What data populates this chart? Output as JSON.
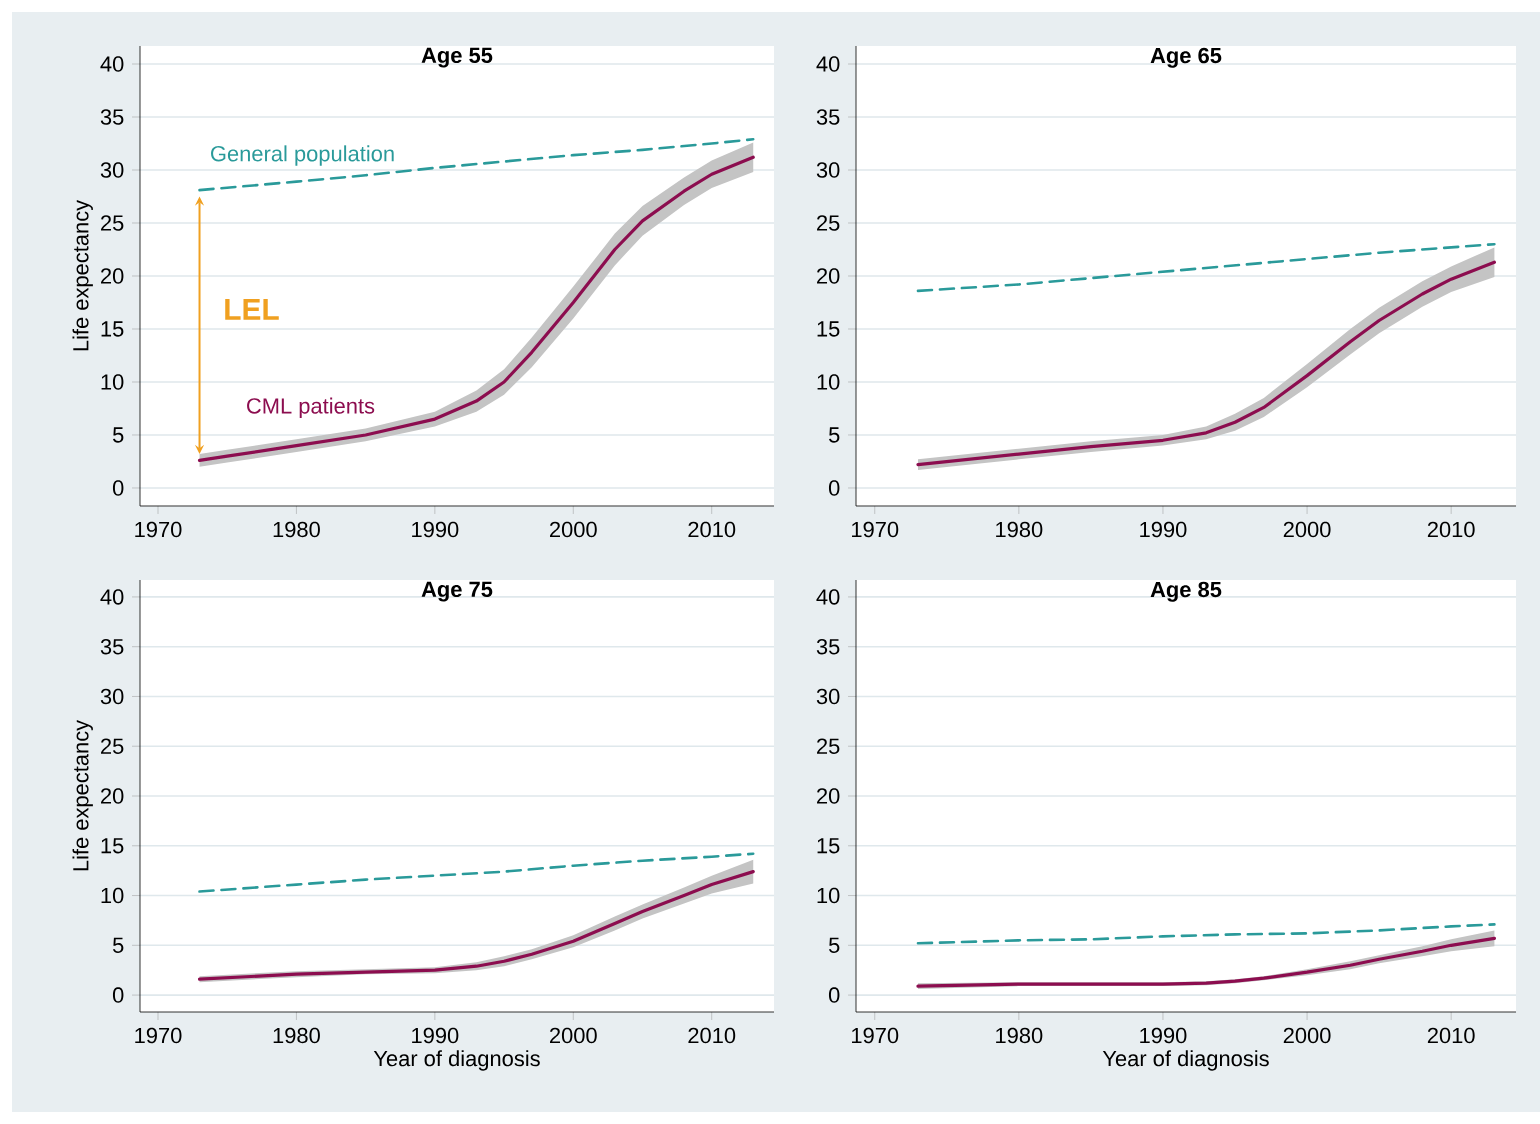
{
  "chart_data": [
    {
      "type": "line",
      "title": "Age 55",
      "ylabel": "Life expectancy",
      "xlim": [
        1968.7,
        2014.5
      ],
      "ylim": [
        -1.7,
        41.7
      ],
      "xticks": [
        1970,
        1980,
        1990,
        2000,
        2010
      ],
      "yticks": [
        0,
        5,
        10,
        15,
        20,
        25,
        30,
        35,
        40
      ],
      "grid": "y",
      "marker": "none",
      "annotations": [
        "LEL"
      ],
      "series": [
        {
          "name": "General population",
          "color": "#2a9a9a",
          "line_style": "dashed",
          "x": [
            1973,
            1980,
            1985,
            1990,
            1995,
            2000,
            2005,
            2010,
            2013
          ],
          "values": [
            28.1,
            28.9,
            29.5,
            30.2,
            30.8,
            31.4,
            31.9,
            32.5,
            32.9
          ]
        },
        {
          "name": "CML patients",
          "color": "#8c0d4f",
          "line_style": "solid",
          "x": [
            1973,
            1975,
            1980,
            1985,
            1990,
            1993,
            1995,
            1997,
            2000,
            2003,
            2005,
            2008,
            2010,
            2013
          ],
          "values": [
            2.6,
            3.0,
            4.0,
            5.0,
            6.5,
            8.2,
            10.0,
            12.8,
            17.5,
            22.5,
            25.2,
            28.0,
            29.6,
            31.2
          ],
          "lower": [
            2.0,
            2.4,
            3.4,
            4.4,
            5.8,
            7.2,
            8.8,
            11.4,
            16.0,
            21.0,
            23.8,
            26.7,
            28.3,
            29.8
          ],
          "upper": [
            3.2,
            3.6,
            4.6,
            5.6,
            7.2,
            9.2,
            11.2,
            14.2,
            19.0,
            24.0,
            26.6,
            29.3,
            30.9,
            32.6
          ]
        }
      ]
    },
    {
      "type": "line",
      "title": "Age 65",
      "xlim": [
        1968.7,
        2014.5
      ],
      "ylim": [
        -1.7,
        41.7
      ],
      "xticks": [
        1970,
        1980,
        1990,
        2000,
        2010
      ],
      "yticks": [
        0,
        5,
        10,
        15,
        20,
        25,
        30,
        35,
        40
      ],
      "grid": "y",
      "marker": "none",
      "series": [
        {
          "color": "#2a9a9a",
          "line_style": "dashed",
          "x": [
            1973,
            1980,
            1985,
            1990,
            1995,
            2000,
            2005,
            2010,
            2013
          ],
          "values": [
            18.6,
            19.2,
            19.8,
            20.4,
            21.0,
            21.6,
            22.2,
            22.7,
            23.0
          ]
        },
        {
          "color": "#8c0d4f",
          "line_style": "solid",
          "x": [
            1973,
            1980,
            1985,
            1990,
            1993,
            1995,
            1997,
            2000,
            2003,
            2005,
            2008,
            2010,
            2013
          ],
          "values": [
            2.2,
            3.2,
            3.9,
            4.5,
            5.2,
            6.2,
            7.6,
            10.6,
            13.8,
            15.8,
            18.3,
            19.7,
            21.3
          ],
          "lower": [
            1.7,
            2.7,
            3.4,
            4.0,
            4.6,
            5.4,
            6.7,
            9.5,
            12.6,
            14.6,
            17.1,
            18.5,
            19.9
          ],
          "upper": [
            2.7,
            3.7,
            4.4,
            5.0,
            5.8,
            7.0,
            8.5,
            11.7,
            15.0,
            17.0,
            19.5,
            20.9,
            22.7
          ]
        }
      ]
    },
    {
      "type": "line",
      "title": "Age 75",
      "xlabel": "Year of diagnosis",
      "ylabel": "Life expectancy",
      "xlim": [
        1968.7,
        2014.5
      ],
      "ylim": [
        -1.7,
        41.7
      ],
      "xticks": [
        1970,
        1980,
        1990,
        2000,
        2010
      ],
      "yticks": [
        0,
        5,
        10,
        15,
        20,
        25,
        30,
        35,
        40
      ],
      "grid": "y",
      "marker": "none",
      "series": [
        {
          "color": "#2a9a9a",
          "line_style": "dashed",
          "x": [
            1973,
            1980,
            1985,
            1990,
            1995,
            2000,
            2005,
            2010,
            2013
          ],
          "values": [
            10.4,
            11.1,
            11.6,
            12.0,
            12.4,
            13.0,
            13.5,
            13.9,
            14.2
          ]
        },
        {
          "color": "#8c0d4f",
          "line_style": "solid",
          "x": [
            1973,
            1980,
            1985,
            1990,
            1993,
            1995,
            1997,
            2000,
            2003,
            2005,
            2008,
            2010,
            2013
          ],
          "values": [
            1.6,
            2.1,
            2.3,
            2.5,
            2.9,
            3.4,
            4.1,
            5.4,
            7.2,
            8.4,
            10.0,
            11.1,
            12.4
          ],
          "lower": [
            1.3,
            1.8,
            2.1,
            2.2,
            2.5,
            2.9,
            3.6,
            4.8,
            6.5,
            7.7,
            9.2,
            10.2,
            11.2
          ],
          "upper": [
            1.9,
            2.4,
            2.6,
            2.8,
            3.3,
            3.9,
            4.6,
            6.0,
            7.9,
            9.1,
            10.8,
            12.0,
            13.6
          ]
        }
      ]
    },
    {
      "type": "line",
      "title": "Age 85",
      "xlabel": "Year of diagnosis",
      "xlim": [
        1968.7,
        2014.5
      ],
      "ylim": [
        -1.7,
        41.7
      ],
      "xticks": [
        1970,
        1980,
        1990,
        2000,
        2010
      ],
      "yticks": [
        0,
        5,
        10,
        15,
        20,
        25,
        30,
        35,
        40
      ],
      "grid": "y",
      "marker": "none",
      "series": [
        {
          "color": "#2a9a9a",
          "line_style": "dashed",
          "x": [
            1973,
            1980,
            1985,
            1990,
            1995,
            2000,
            2005,
            2010,
            2013
          ],
          "values": [
            5.2,
            5.5,
            5.6,
            5.9,
            6.1,
            6.2,
            6.5,
            6.9,
            7.1
          ]
        },
        {
          "color": "#8c0d4f",
          "line_style": "solid",
          "x": [
            1973,
            1980,
            1985,
            1990,
            1993,
            1995,
            1997,
            2000,
            2003,
            2005,
            2008,
            2010,
            2013
          ],
          "values": [
            0.9,
            1.1,
            1.1,
            1.1,
            1.2,
            1.4,
            1.7,
            2.3,
            3.0,
            3.6,
            4.4,
            5.0,
            5.7
          ],
          "lower": [
            0.6,
            0.9,
            0.9,
            0.9,
            1.0,
            1.2,
            1.5,
            2.0,
            2.6,
            3.2,
            3.9,
            4.4,
            4.9
          ],
          "upper": [
            1.2,
            1.3,
            1.3,
            1.3,
            1.4,
            1.6,
            1.9,
            2.6,
            3.4,
            4.0,
            4.9,
            5.6,
            6.5
          ]
        }
      ]
    }
  ]
}
